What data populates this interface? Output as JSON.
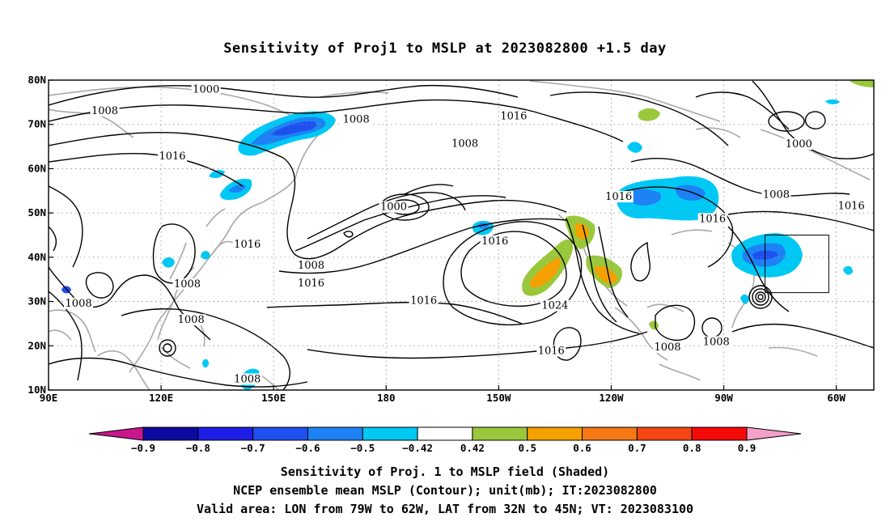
{
  "title": "Sensitivity of Proj1 to MSLP at 2023082800 +1.5 day",
  "map": {
    "lon_min": 90,
    "lon_max": 310,
    "lat_min": 10,
    "lat_max": 80,
    "lon_ticks": [
      {
        "lon": 90,
        "label": "90E"
      },
      {
        "lon": 120,
        "label": "120E"
      },
      {
        "lon": 150,
        "label": "150E"
      },
      {
        "lon": 180,
        "label": "180"
      },
      {
        "lon": 210,
        "label": "150W"
      },
      {
        "lon": 240,
        "label": "120W"
      },
      {
        "lon": 270,
        "label": "90W"
      },
      {
        "lon": 300,
        "label": "60W"
      }
    ],
    "lat_ticks": [
      {
        "lat": 10,
        "label": "10N"
      },
      {
        "lat": 20,
        "label": "20N"
      },
      {
        "lat": 30,
        "label": "30N"
      },
      {
        "lat": 40,
        "label": "40N"
      },
      {
        "lat": 50,
        "label": "50N"
      },
      {
        "lat": 60,
        "label": "60N"
      },
      {
        "lat": 70,
        "label": "70N"
      },
      {
        "lat": 80,
        "label": "80N"
      }
    ],
    "valid_box": {
      "lon_min": 281,
      "lon_max": 298,
      "lat_min": 32,
      "lat_max": 45
    },
    "contour_labels": [
      {
        "lon": 132,
        "lat": 77.5,
        "text": "1000"
      },
      {
        "lon": 105,
        "lat": 72.7,
        "text": "1008"
      },
      {
        "lon": 172,
        "lat": 70.8,
        "text": "1008"
      },
      {
        "lon": 123,
        "lat": 62.5,
        "text": "1016"
      },
      {
        "lon": 214,
        "lat": 71.5,
        "text": "1016"
      },
      {
        "lon": 201,
        "lat": 65.3,
        "text": "1008"
      },
      {
        "lon": 290,
        "lat": 65.2,
        "text": "1000"
      },
      {
        "lon": 182,
        "lat": 51.0,
        "text": "1000"
      },
      {
        "lon": 209,
        "lat": 43.3,
        "text": "1016"
      },
      {
        "lon": 242,
        "lat": 53.3,
        "text": "1016"
      },
      {
        "lon": 284,
        "lat": 53.8,
        "text": "1008"
      },
      {
        "lon": 304,
        "lat": 51.2,
        "text": "1016"
      },
      {
        "lon": 267,
        "lat": 48.3,
        "text": "1016"
      },
      {
        "lon": 143,
        "lat": 42.5,
        "text": "1016"
      },
      {
        "lon": 160,
        "lat": 37.8,
        "text": "1008"
      },
      {
        "lon": 160,
        "lat": 33.8,
        "text": "1016"
      },
      {
        "lon": 127,
        "lat": 33.6,
        "text": "1008"
      },
      {
        "lon": 98,
        "lat": 29.2,
        "text": "1008"
      },
      {
        "lon": 128,
        "lat": 25.5,
        "text": "1008"
      },
      {
        "lon": 190,
        "lat": 29.8,
        "text": "1016"
      },
      {
        "lon": 225,
        "lat": 28.7,
        "text": "1024"
      },
      {
        "lon": 224,
        "lat": 18.5,
        "text": "1016"
      },
      {
        "lon": 255,
        "lat": 19.3,
        "text": "1008"
      },
      {
        "lon": 268,
        "lat": 20.5,
        "text": "1008"
      },
      {
        "lon": 143,
        "lat": 12.1,
        "text": "1008"
      }
    ]
  },
  "colorbar": {
    "labels": [
      "−0.9",
      "−0.8",
      "−0.7",
      "−0.6",
      "−0.5",
      "−0.42",
      "0.42",
      "0.5",
      "0.6",
      "0.7",
      "0.8",
      "0.9"
    ],
    "colors": [
      "#c8168c",
      "#0a0aa0",
      "#1e1ee6",
      "#1e50f0",
      "#1e82f5",
      "#00c8f5",
      "#ffffff",
      "#9ac83c",
      "#f5a000",
      "#f57814",
      "#f54614",
      "#f50a0a",
      "#f5a0c8"
    ]
  },
  "captions": [
    "Sensitivity of Proj. 1 to MSLP field (Shaded)",
    "NCEP ensemble mean MSLP (Contour); unit(mb); IT:2023082800",
    "Valid area: LON from 79W to 62W, LAT from 32N to 45N; VT: 2023083100"
  ]
}
